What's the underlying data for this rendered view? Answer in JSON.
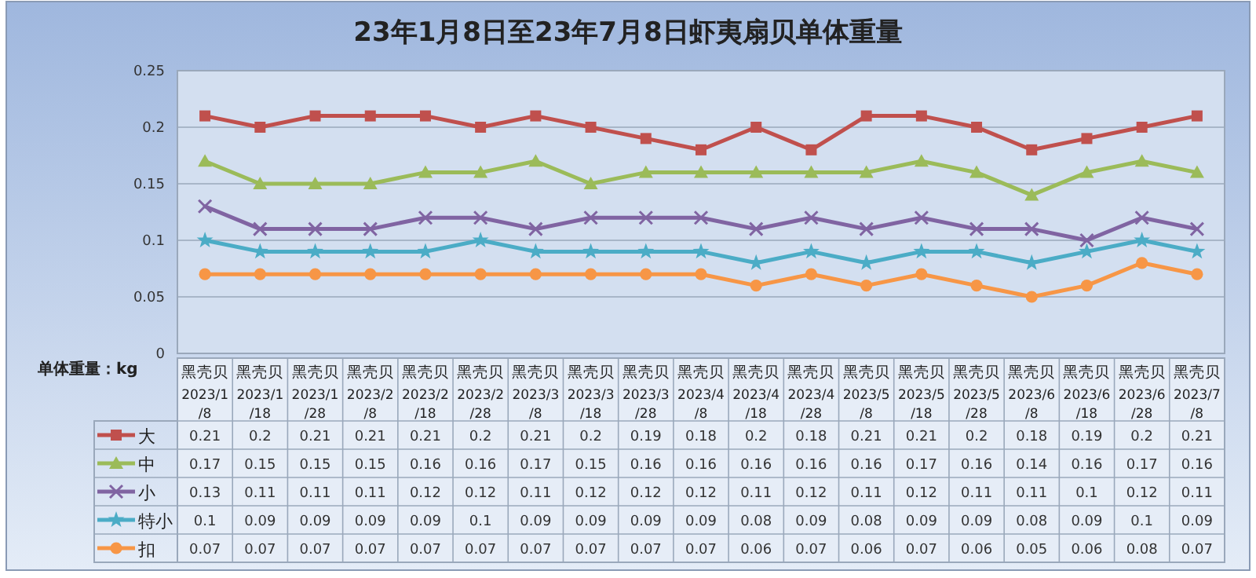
{
  "chart_data": {
    "type": "line",
    "title": "23年1月8日至23年7月8日虾夷扇贝单体重量",
    "ylabel": "单体重量：kg",
    "categories": [
      "黑壳贝 2023/1/8",
      "黑壳贝 2023/1/18",
      "黑壳贝 2023/1/28",
      "黑壳贝 2023/2/8",
      "黑壳贝 2023/2/18",
      "黑壳贝 2023/2/28",
      "黑壳贝 2023/3/8",
      "黑壳贝 2023/3/18",
      "黑壳贝 2023/3/28",
      "黑壳贝 2023/4/8",
      "黑壳贝 2023/4/18",
      "黑壳贝 2023/4/28",
      "黑壳贝 2023/5/8",
      "黑壳贝 2023/5/18",
      "黑壳贝 2023/5/28",
      "黑壳贝 2023/6/8",
      "黑壳贝 2023/6/18",
      "黑壳贝 2023/6/28",
      "黑壳贝 2023/7/8"
    ],
    "series": [
      {
        "name": "大",
        "color": "#c0504d",
        "marker": "square",
        "values": [
          0.21,
          0.2,
          0.21,
          0.21,
          0.21,
          0.2,
          0.21,
          0.2,
          0.19,
          0.18,
          0.2,
          0.18,
          0.21,
          0.21,
          0.2,
          0.18,
          0.19,
          0.2,
          0.21
        ]
      },
      {
        "name": "中",
        "color": "#9bbb59",
        "marker": "triangle",
        "values": [
          0.17,
          0.15,
          0.15,
          0.15,
          0.16,
          0.16,
          0.17,
          0.15,
          0.16,
          0.16,
          0.16,
          0.16,
          0.16,
          0.17,
          0.16,
          0.14,
          0.16,
          0.17,
          0.16
        ]
      },
      {
        "name": "小",
        "color": "#8064a2",
        "marker": "cross",
        "values": [
          0.13,
          0.11,
          0.11,
          0.11,
          0.12,
          0.12,
          0.11,
          0.12,
          0.12,
          0.12,
          0.11,
          0.12,
          0.11,
          0.12,
          0.11,
          0.11,
          0.1,
          0.12,
          0.11
        ]
      },
      {
        "name": "特小",
        "color": "#4bacc6",
        "marker": "star",
        "values": [
          0.1,
          0.09,
          0.09,
          0.09,
          0.09,
          0.1,
          0.09,
          0.09,
          0.09,
          0.09,
          0.08,
          0.09,
          0.08,
          0.09,
          0.09,
          0.08,
          0.09,
          0.1,
          0.09
        ]
      },
      {
        "name": "扣",
        "color": "#f79646",
        "marker": "circle",
        "values": [
          0.07,
          0.07,
          0.07,
          0.07,
          0.07,
          0.07,
          0.07,
          0.07,
          0.07,
          0.07,
          0.06,
          0.07,
          0.06,
          0.07,
          0.06,
          0.05,
          0.06,
          0.08,
          0.07
        ]
      }
    ],
    "ylim": [
      0,
      0.25
    ],
    "yticks": [
      0,
      0.05,
      0.1,
      0.15,
      0.2,
      0.25
    ],
    "grid": "y",
    "legend": "bottom left",
    "data_labels": true
  }
}
